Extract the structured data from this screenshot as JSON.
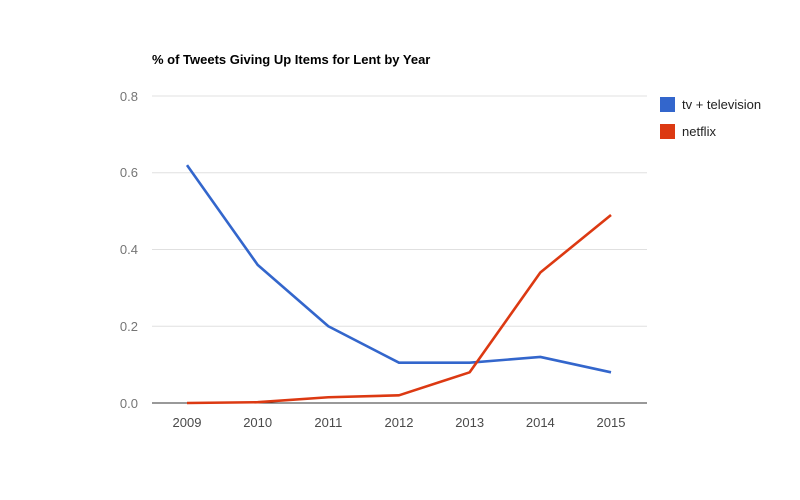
{
  "chart_data": {
    "type": "line",
    "title": "% of Tweets Giving Up Items for Lent by Year",
    "categories": [
      "2009",
      "2010",
      "2011",
      "2012",
      "2013",
      "2014",
      "2015"
    ],
    "series": [
      {
        "name": "tv + television",
        "color": "#3366cc",
        "values": [
          0.62,
          0.36,
          0.2,
          0.105,
          0.105,
          0.12,
          0.08
        ]
      },
      {
        "name": "netflix",
        "color": "#dc3912",
        "values": [
          0.0,
          0.002,
          0.015,
          0.02,
          0.08,
          0.34,
          0.49
        ]
      }
    ],
    "xlabel": "",
    "ylabel": "",
    "ylim": [
      0,
      0.8
    ],
    "yticks": [
      0.0,
      0.2,
      0.4,
      0.6,
      0.8
    ],
    "ytick_labels": [
      "0.0",
      "0.2",
      "0.4",
      "0.6",
      "0.8"
    ],
    "grid": true,
    "legend_position": "right"
  },
  "colors": {
    "background": "#ffffff",
    "gridline": "#e0e0e0",
    "axis_baseline": "#333333",
    "ytick_text": "#757575",
    "xtick_text": "#4a4a4a",
    "title_text": "#000000",
    "legend_text": "#222222",
    "series_blue": "#3366cc",
    "series_red": "#dc3912"
  }
}
